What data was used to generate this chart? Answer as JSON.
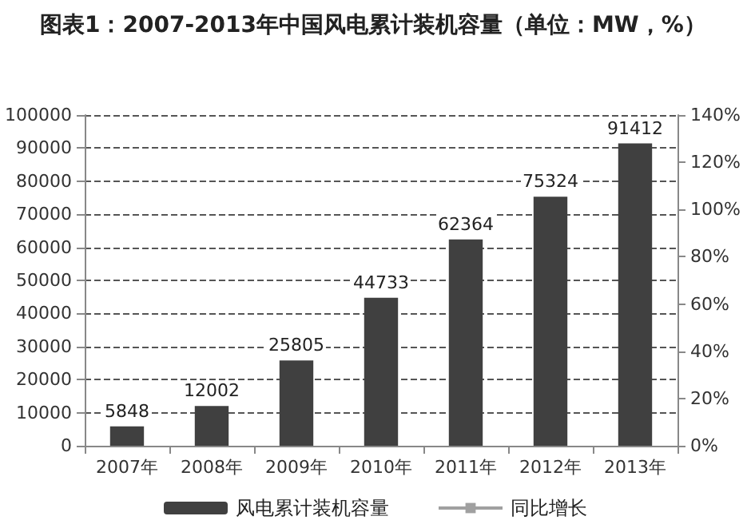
{
  "chart_data": {
    "type": "bar",
    "title": "图表1：2007-2013年中国风电累计装机容量（单位：MW，%）",
    "categories": [
      "2007年",
      "2008年",
      "2009年",
      "2010年",
      "2011年",
      "2012年",
      "2013年"
    ],
    "series": [
      {
        "name": "风电累计装机容量",
        "color": "#404040",
        "values": [
          5848,
          12002,
          25805,
          44733,
          62364,
          75324,
          91412
        ]
      },
      {
        "name": "同比增长",
        "type": "line",
        "axis": "y2",
        "color": "#a0a0a0",
        "values": [
          null,
          null,
          null,
          null,
          null,
          null,
          null
        ]
      }
    ],
    "data_labels": true,
    "ylim": [
      0,
      100000
    ],
    "yticks": [
      0,
      10000,
      20000,
      30000,
      40000,
      50000,
      60000,
      70000,
      80000,
      90000,
      100000
    ],
    "y2lim": [
      0,
      140
    ],
    "y2ticks": [
      {
        "value": 0,
        "label": "0%"
      },
      {
        "value": 20,
        "label": "20%"
      },
      {
        "value": 40,
        "label": "40%"
      },
      {
        "value": 60,
        "label": "60%"
      },
      {
        "value": 80,
        "label": "80%"
      },
      {
        "value": 100,
        "label": "100%"
      },
      {
        "value": 120,
        "label": "120%"
      },
      {
        "value": 140,
        "label": "140%"
      }
    ],
    "grid": "y",
    "legend": "bottom"
  }
}
